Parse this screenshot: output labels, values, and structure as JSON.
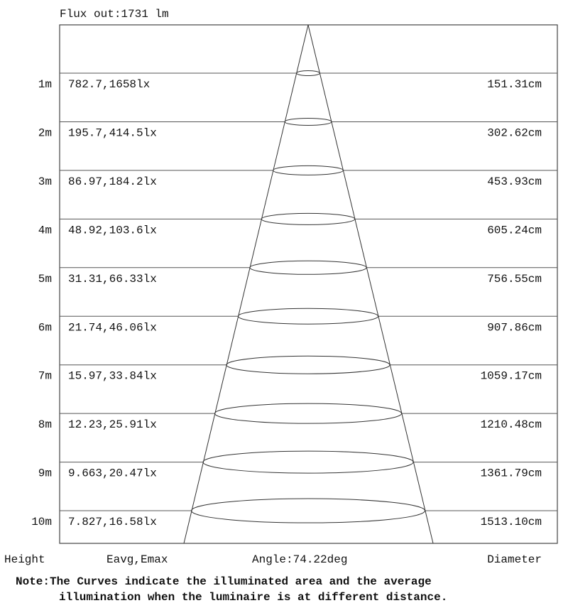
{
  "flux": "Flux out:1731 lm",
  "rows": [
    {
      "height": "1m",
      "illum": "782.7,1658lx",
      "diameter": "151.31cm"
    },
    {
      "height": "2m",
      "illum": "195.7,414.5lx",
      "diameter": "302.62cm"
    },
    {
      "height": "3m",
      "illum": "86.97,184.2lx",
      "diameter": "453.93cm"
    },
    {
      "height": "4m",
      "illum": "48.92,103.6lx",
      "diameter": "605.24cm"
    },
    {
      "height": "5m",
      "illum": "31.31,66.33lx",
      "diameter": "756.55cm"
    },
    {
      "height": "6m",
      "illum": "21.74,46.06lx",
      "diameter": "907.86cm"
    },
    {
      "height": "7m",
      "illum": "15.97,33.84lx",
      "diameter": "1059.17cm"
    },
    {
      "height": "8m",
      "illum": "12.23,25.91lx",
      "diameter": "1210.48cm"
    },
    {
      "height": "9m",
      "illum": "9.663,20.47lx",
      "diameter": "1361.79cm"
    },
    {
      "height": "10m",
      "illum": "7.827,16.58lx",
      "diameter": "1513.10cm"
    }
  ],
  "footer": {
    "height_label": "Height",
    "illum_label": "Eavg,Emax",
    "angle_label": "Angle:74.22deg",
    "diameter_label": "Diameter"
  },
  "note": {
    "line1": "Note:The Curves indicate the illuminated area and the average",
    "line2": "illumination when the luminaire is at different distance."
  }
}
